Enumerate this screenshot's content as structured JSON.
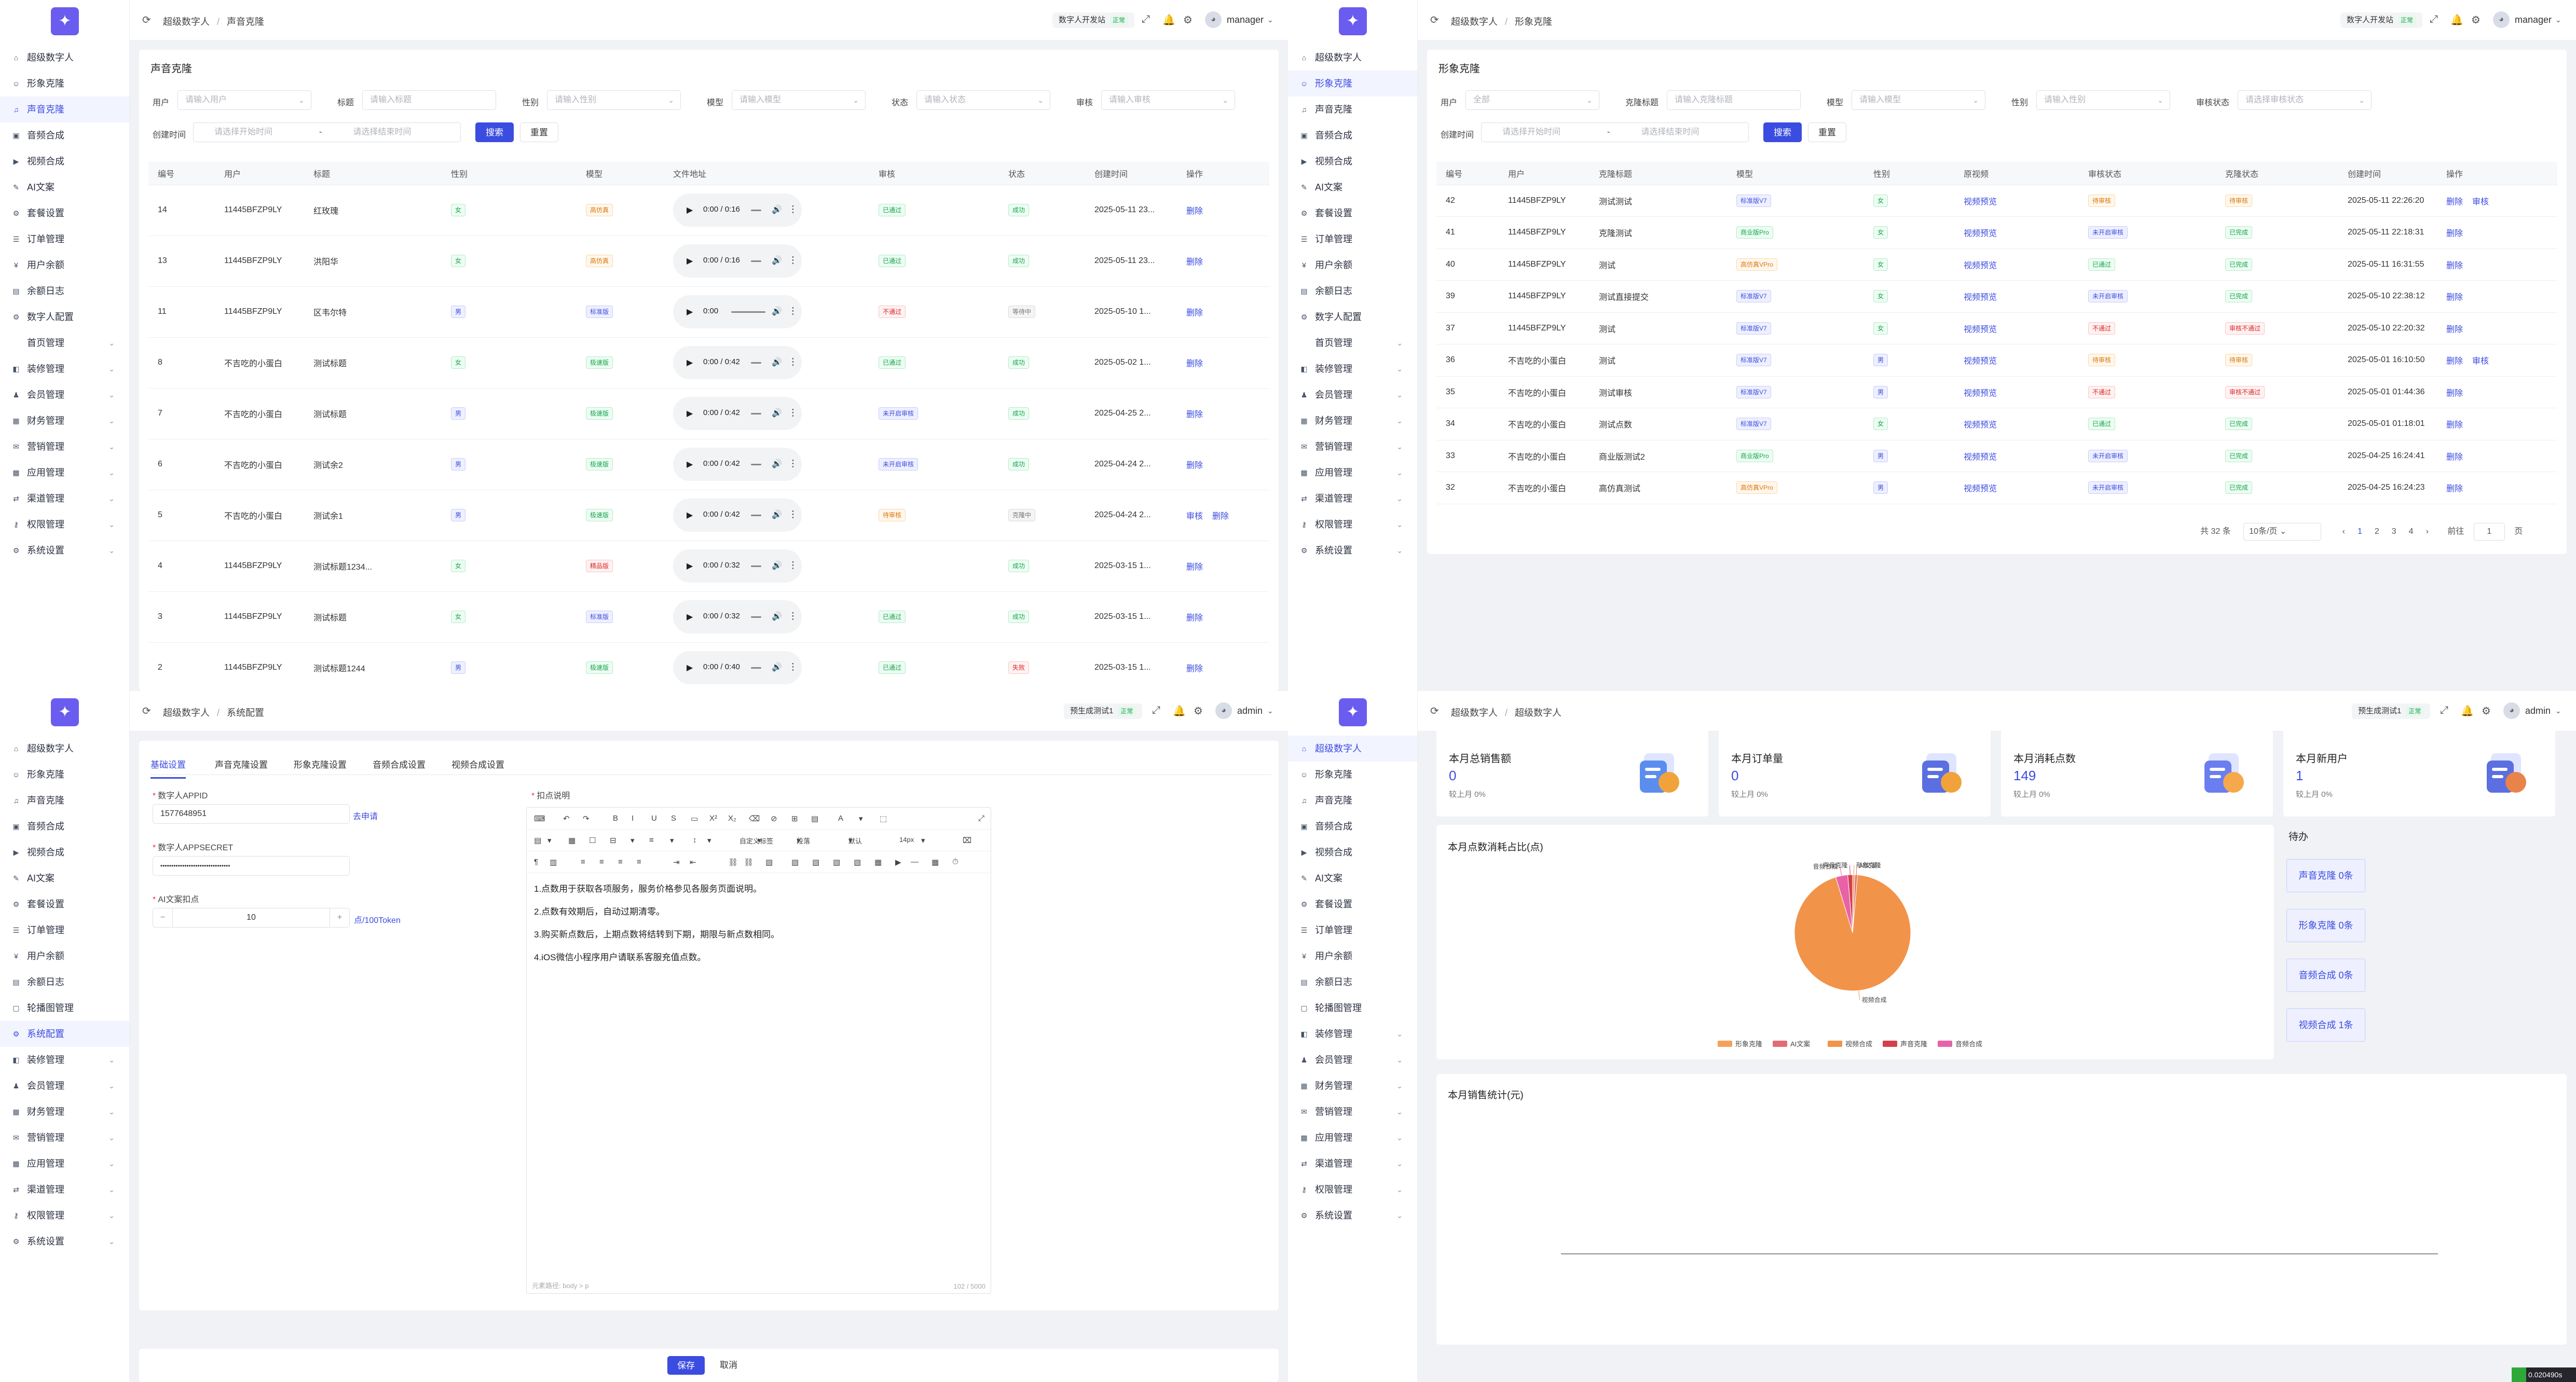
{
  "nav": {
    "items": [
      "超级数字人",
      "形象克隆",
      "声音克隆",
      "音频合成",
      "视频合成",
      "AI文案",
      "套餐设置",
      "订单管理",
      "用户余额",
      "余额日志",
      "数字人配置",
      "首页管理",
      "装修管理",
      "会员管理",
      "财务管理",
      "营销管理",
      "应用管理",
      "渠道管理",
      "权限管理",
      "系统设置"
    ],
    "items3": [
      "超级数字人",
      "形象克隆",
      "声音克隆",
      "音频合成",
      "视频合成",
      "AI文案",
      "套餐设置",
      "订单管理",
      "用户余额",
      "余额日志",
      "轮播图管理",
      "系统配置",
      "装修管理",
      "会员管理",
      "财务管理",
      "营销管理",
      "应用管理",
      "渠道管理",
      "权限管理",
      "系统设置"
    ],
    "items4": [
      "超级数字人",
      "形象克隆",
      "声音克隆",
      "音频合成",
      "视频合成",
      "AI文案",
      "套餐设置",
      "订单管理",
      "用户余额",
      "余额日志",
      "轮播图管理",
      "装修管理",
      "会员管理",
      "财务管理",
      "营销管理",
      "应用管理",
      "渠道管理",
      "权限管理",
      "系统设置"
    ]
  },
  "header": {
    "crumb_root": "超级数字人",
    "p1_crumb": "声音克隆",
    "p2_crumb": "形象克隆",
    "p3_crumb": "系统配置",
    "p4_crumb": "超级数字人",
    "site_btn": "数字人开发站",
    "site_tag": "正常",
    "site_btn2": "预生成测试1",
    "user": "manager",
    "user2": "admin"
  },
  "voice": {
    "title": "声音克隆",
    "filters": {
      "user": "用户",
      "user_ph": "请输入用户",
      "title": "标题",
      "title_ph": "请输入标题",
      "gender": "性别",
      "gender_ph": "请输入性别",
      "model": "模型",
      "model_ph": "请输入模型",
      "status": "状态",
      "status_ph": "请输入状态",
      "audit": "审核",
      "audit_ph": "请输入审核",
      "created": "创建时间",
      "start_ph": "请选择开始时间",
      "to": "-",
      "end_ph": "请选择结束时间",
      "search": "搜索",
      "reset": "重置"
    },
    "columns": [
      "编号",
      "用户",
      "标题",
      "性别",
      "模型",
      "文件地址",
      "审核",
      "状态",
      "创建时间",
      "操作"
    ],
    "rows": [
      {
        "id": "14",
        "user": "11445BFZP9LY",
        "title": "红玫瑰",
        "gender": "女",
        "gc": "b-green",
        "model": "高仿真",
        "mc": "b-orange",
        "time": "0:00 / 0:16",
        "audit": "已通过",
        "ac": "b-green",
        "status": "成功",
        "sc": "b-green",
        "created": "2025-05-11 23...",
        "ops": [
          "删除"
        ]
      },
      {
        "id": "13",
        "user": "11445BFZP9LY",
        "title": "洪阳华",
        "gender": "女",
        "gc": "b-green",
        "model": "高仿真",
        "mc": "b-orange",
        "time": "0:00 / 0:16",
        "audit": "已通过",
        "ac": "b-green",
        "status": "成功",
        "sc": "b-green",
        "created": "2025-05-11 23...",
        "ops": [
          "删除"
        ]
      },
      {
        "id": "11",
        "user": "11445BFZP9LY",
        "title": "区韦尔特",
        "gender": "男",
        "gc": "b-blue",
        "model": "标准版",
        "mc": "b-blue",
        "time": "0:00",
        "audit": "不通过",
        "ac": "b-red",
        "status": "等待中",
        "sc": "b-gray",
        "created": "2025-05-10 1...",
        "ops": [
          "删除"
        ]
      },
      {
        "id": "8",
        "user": "不吉吃的小蛋白",
        "title": "测试标题",
        "gender": "女",
        "gc": "b-green",
        "model": "极速版",
        "mc": "b-green",
        "time": "0:00 / 0:42",
        "audit": "已通过",
        "ac": "b-green",
        "status": "成功",
        "sc": "b-green",
        "created": "2025-05-02 1...",
        "ops": [
          "删除"
        ]
      },
      {
        "id": "7",
        "user": "不吉吃的小蛋白",
        "title": "测试标题",
        "gender": "男",
        "gc": "b-blue",
        "model": "极速版",
        "mc": "b-green",
        "time": "0:00 / 0:42",
        "audit": "未开启审核",
        "ac": "b-blue",
        "status": "成功",
        "sc": "b-green",
        "created": "2025-04-25 2...",
        "ops": [
          "删除"
        ]
      },
      {
        "id": "6",
        "user": "不吉吃的小蛋白",
        "title": "测试余2",
        "gender": "男",
        "gc": "b-blue",
        "model": "极速版",
        "mc": "b-green",
        "time": "0:00 / 0:42",
        "audit": "未开启审核",
        "ac": "b-blue",
        "status": "成功",
        "sc": "b-green",
        "created": "2025-04-24 2...",
        "ops": [
          "删除"
        ]
      },
      {
        "id": "5",
        "user": "不吉吃的小蛋白",
        "title": "测试余1",
        "gender": "男",
        "gc": "b-blue",
        "model": "极速版",
        "mc": "b-green",
        "time": "0:00 / 0:42",
        "audit": "待审核",
        "ac": "b-orange",
        "status": "克隆中",
        "sc": "b-gray",
        "created": "2025-04-24 2...",
        "ops": [
          "审核",
          "删除"
        ]
      },
      {
        "id": "4",
        "user": "11445BFZP9LY",
        "title": "测试标题1234...",
        "gender": "女",
        "gc": "b-green",
        "model": "精品版",
        "mc": "b-red",
        "time": "0:00 / 0:32",
        "audit": "",
        "ac": "",
        "status": "成功",
        "sc": "b-green",
        "created": "2025-03-15 1...",
        "ops": [
          "删除"
        ]
      },
      {
        "id": "3",
        "user": "11445BFZP9LY",
        "title": "测试标题",
        "gender": "女",
        "gc": "b-green",
        "model": "标准版",
        "mc": "b-blue",
        "time": "0:00 / 0:32",
        "audit": "已通过",
        "ac": "b-green",
        "status": "成功",
        "sc": "b-green",
        "created": "2025-03-15 1...",
        "ops": [
          "删除"
        ]
      },
      {
        "id": "2",
        "user": "11445BFZP9LY",
        "title": "测试标题1244",
        "gender": "男",
        "gc": "b-blue",
        "model": "极速版",
        "mc": "b-green",
        "time": "0:00 / 0:40",
        "audit": "已通过",
        "ac": "b-green",
        "status": "失败",
        "sc": "b-red",
        "created": "2025-03-15 1...",
        "ops": [
          "删除"
        ]
      }
    ]
  },
  "image": {
    "title": "形象克隆",
    "filters": {
      "user": "用户",
      "user_ph": "全部",
      "title": "克隆标题",
      "title_ph": "请输入克隆标题",
      "model": "模型",
      "model_ph": "请输入模型",
      "gender": "性别",
      "gender_ph": "请输入性别",
      "audit": "审核状态",
      "audit_ph": "请选择审核状态",
      "created": "创建时间",
      "start_ph": "请选择开始时间",
      "to": "-",
      "end_ph": "请选择结束时间",
      "search": "搜索",
      "reset": "重置"
    },
    "columns": [
      "编号",
      "用户",
      "克隆标题",
      "模型",
      "性别",
      "原视频",
      "审核状态",
      "克隆状态",
      "创建时间",
      "操作"
    ],
    "rows": [
      {
        "id": "42",
        "user": "11445BFZP9LY",
        "title": "测试测试",
        "model": "标准版V7",
        "mc": "b-blue",
        "gender": "女",
        "gc": "b-green",
        "video": "视频预览",
        "audit": "待审核",
        "ac": "b-orange",
        "status": "待审核",
        "sc": "b-orange",
        "created": "2025-05-11 22:26:20",
        "ops": [
          "删除",
          "审核"
        ]
      },
      {
        "id": "41",
        "user": "11445BFZP9LY",
        "title": "克隆测试",
        "model": "商业版Pro",
        "mc": "b-green",
        "gender": "女",
        "gc": "b-green",
        "video": "视频预览",
        "audit": "未开启审核",
        "ac": "b-blue",
        "status": "已完成",
        "sc": "b-green",
        "created": "2025-05-11 22:18:31",
        "ops": [
          "删除"
        ]
      },
      {
        "id": "40",
        "user": "11445BFZP9LY",
        "title": "测试",
        "model": "高仿真VPro",
        "mc": "b-orange",
        "gender": "女",
        "gc": "b-green",
        "video": "视频预览",
        "audit": "已通过",
        "ac": "b-green",
        "status": "已完成",
        "sc": "b-green",
        "created": "2025-05-11 16:31:55",
        "ops": [
          "删除"
        ]
      },
      {
        "id": "39",
        "user": "11445BFZP9LY",
        "title": "测试直接提交",
        "model": "标准版V7",
        "mc": "b-blue",
        "gender": "女",
        "gc": "b-green",
        "video": "视频预览",
        "audit": "未开启审核",
        "ac": "b-blue",
        "status": "已完成",
        "sc": "b-green",
        "created": "2025-05-10 22:38:12",
        "ops": [
          "删除"
        ]
      },
      {
        "id": "37",
        "user": "11445BFZP9LY",
        "title": "测试",
        "model": "标准版V7",
        "mc": "b-blue",
        "gender": "女",
        "gc": "b-green",
        "video": "视频预览",
        "audit": "不通过",
        "ac": "b-red",
        "status": "审核不通过",
        "sc": "b-red",
        "created": "2025-05-10 22:20:32",
        "ops": [
          "删除"
        ]
      },
      {
        "id": "36",
        "user": "不吉吃的小蛋白",
        "title": "测试",
        "model": "标准版V7",
        "mc": "b-blue",
        "gender": "男",
        "gc": "b-blue",
        "video": "视频预览",
        "audit": "待审核",
        "ac": "b-orange",
        "status": "待审核",
        "sc": "b-orange",
        "created": "2025-05-01 16:10:50",
        "ops": [
          "删除",
          "审核"
        ]
      },
      {
        "id": "35",
        "user": "不吉吃的小蛋白",
        "title": "测试审核",
        "model": "标准版V7",
        "mc": "b-blue",
        "gender": "男",
        "gc": "b-blue",
        "video": "视频预览",
        "audit": "不通过",
        "ac": "b-red",
        "status": "审核不通过",
        "sc": "b-red",
        "created": "2025-05-01 01:44:36",
        "ops": [
          "删除"
        ]
      },
      {
        "id": "34",
        "user": "不吉吃的小蛋白",
        "title": "测试点数",
        "model": "标准版V7",
        "mc": "b-blue",
        "gender": "女",
        "gc": "b-green",
        "video": "视频预览",
        "audit": "已通过",
        "ac": "b-green",
        "status": "已完成",
        "sc": "b-green",
        "created": "2025-05-01 01:18:01",
        "ops": [
          "删除"
        ]
      },
      {
        "id": "33",
        "user": "不吉吃的小蛋白",
        "title": "商业版测试2",
        "model": "商业版Pro",
        "mc": "b-green",
        "gender": "男",
        "gc": "b-blue",
        "video": "视频预览",
        "audit": "未开启审核",
        "ac": "b-blue",
        "status": "已完成",
        "sc": "b-green",
        "created": "2025-04-25 16:24:41",
        "ops": [
          "删除"
        ]
      },
      {
        "id": "32",
        "user": "不吉吃的小蛋白",
        "title": "高仿真测试",
        "model": "高仿真VPro",
        "mc": "b-orange",
        "gender": "男",
        "gc": "b-blue",
        "video": "视频预览",
        "audit": "未开启审核",
        "ac": "b-blue",
        "status": "已完成",
        "sc": "b-green",
        "created": "2025-04-25 16:24:23",
        "ops": [
          "删除"
        ]
      }
    ],
    "pager": {
      "total": "共 32 条",
      "size": "10条/页",
      "prev": "‹",
      "pages": [
        "1",
        "2",
        "3",
        "4"
      ],
      "next": "›",
      "goto": "前往",
      "page": "1",
      "unit": "页"
    }
  },
  "config": {
    "tabs": [
      "基础设置",
      "声音克隆设置",
      "形象克隆设置",
      "音频合成设置",
      "视频合成设置"
    ],
    "appid_label": "数字人APPID",
    "appid_value": "1577648951",
    "apply_link": "去申请",
    "secret_label": "数字人APPSECRET",
    "secret_value": "••••••••••••••••••••••••••••••••",
    "deduct_label": "AI文案扣点",
    "deduct_value": "10",
    "deduct_unit": "点/100Token",
    "minus": "−",
    "plus": "+",
    "desc_label": "扣点说明",
    "editor_lines": [
      "1.点数用于获取各项服务，服务价格参见各服务页面说明。",
      "2.点数有效期后，自动过期清零。",
      "3.购买新点数后，上期点数将结转到下期，期限与新点数相同。",
      "4.iOS微信小程序用户请联系客服充值点数。"
    ],
    "font_family": "自定义标签",
    "font_block": "段落",
    "font_default": "默认",
    "font_size": "14px",
    "editor_footer": "元素路径: body > p",
    "editor_count": "102 / 5000",
    "save": "保存",
    "cancel": "取消"
  },
  "dashboard": {
    "stats": [
      {
        "label": "本月总销售额",
        "value": "0",
        "sub": "较上月 0%"
      },
      {
        "label": "本月订单量",
        "value": "0",
        "sub": "较上月 0%"
      },
      {
        "label": "本月消耗点数",
        "value": "149",
        "sub": "较上月 0%"
      },
      {
        "label": "本月新用户",
        "value": "1",
        "sub": "较上月 0%"
      }
    ],
    "pie_title": "本月点数消耗占比(点)",
    "todo_title": "待办",
    "todos": [
      "声音克隆 0条",
      "形象克隆 0条",
      "音频合成 0条",
      "视频合成 1条"
    ],
    "sales_title": "本月销售统计(元)",
    "timer": "0.020490s"
  },
  "chart_data": {
    "type": "pie",
    "title": "本月点数消耗占比(点)",
    "categories": [
      "形象克隆",
      "AI文案",
      "视频合成",
      "声音克隆",
      "音频合成"
    ],
    "values": [
      1,
      1,
      140,
      2,
      5
    ],
    "colors": [
      "#f4a15d",
      "#e06c75",
      "#f2934a",
      "#d2404d",
      "#e862a8"
    ],
    "legend_position": "bottom"
  },
  "colors": {
    "accent": "#3b4ce0",
    "success": "#16a34a",
    "warning": "#d97706",
    "danger": "#dc2626"
  }
}
